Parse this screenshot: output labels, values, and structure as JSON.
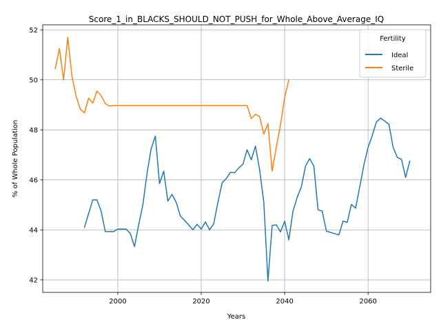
{
  "chart_data": {
    "type": "line",
    "title": "Score_1_in_BLACKS_SHOULD_NOT_PUSH_for_Whole_Above_Average_IQ",
    "xlabel": "Years",
    "ylabel": "% of Whole Population",
    "xlim": [
      1982,
      2075
    ],
    "ylim": [
      41.5,
      52.2
    ],
    "grid": true,
    "xticks": [
      2000,
      2020,
      2040,
      2060
    ],
    "yticks": [
      42,
      44,
      46,
      48,
      50,
      52
    ],
    "legend": {
      "title": "Fertility",
      "placement": "top-right"
    },
    "series": [
      {
        "name": "Ideal",
        "color": "#1f77b4",
        "x": [
          1992,
          1993,
          1994,
          1995,
          1996,
          1997,
          1998,
          1999,
          2000,
          2001,
          2002,
          2003,
          2004,
          2005,
          2006,
          2007,
          2008,
          2009,
          2010,
          2011,
          2012,
          2013,
          2014,
          2015,
          2016,
          2017,
          2018,
          2019,
          2020,
          2021,
          2022,
          2023,
          2024,
          2025,
          2026,
          2027,
          2028,
          2029,
          2030,
          2031,
          2032,
          2033,
          2034,
          2035,
          2036,
          2037,
          2038,
          2039,
          2040,
          2041,
          2042,
          2043,
          2044,
          2045,
          2046,
          2047,
          2048,
          2049,
          2050,
          2051,
          2052,
          2053,
          2054,
          2055,
          2056,
          2057,
          2058,
          2059,
          2060,
          2061,
          2062,
          2063,
          2064,
          2065,
          2066,
          2067,
          2068,
          2069,
          2070
        ],
        "values": [
          44.1,
          44.65,
          45.2,
          45.2,
          44.75,
          43.93,
          43.93,
          43.93,
          44.03,
          44.03,
          44.03,
          43.85,
          43.33,
          44.2,
          45.0,
          46.25,
          47.25,
          47.75,
          45.85,
          46.35,
          45.15,
          45.42,
          45.1,
          44.55,
          44.38,
          44.2,
          44.0,
          44.22,
          44.03,
          44.32,
          44.0,
          44.25,
          45.1,
          45.88,
          46.05,
          46.3,
          46.28,
          46.48,
          46.63,
          47.2,
          46.8,
          47.35,
          46.4,
          45.1,
          41.95,
          44.18,
          44.2,
          43.92,
          44.35,
          43.6,
          44.75,
          45.3,
          45.72,
          46.55,
          46.85,
          46.55,
          44.8,
          44.75,
          43.95,
          43.9,
          43.85,
          43.8,
          44.35,
          44.3,
          45.02,
          44.87,
          45.72,
          46.6,
          47.3,
          47.77,
          48.32,
          48.47,
          48.35,
          48.22,
          47.3,
          46.9,
          46.82,
          46.1,
          46.75
        ]
      },
      {
        "name": "Sterile",
        "color": "#ff7f0e",
        "x": [
          1985,
          1986,
          1987,
          1988,
          1989,
          1990,
          1991,
          1992,
          1993,
          1994,
          1995,
          1996,
          1997,
          1998,
          1999,
          2000,
          2031,
          2032,
          2033,
          2034,
          2035,
          2036,
          2037,
          2038,
          2039,
          2040,
          2041
        ],
        "values": [
          50.45,
          51.25,
          50.0,
          51.7,
          50.15,
          49.35,
          48.83,
          48.68,
          49.27,
          49.07,
          49.55,
          49.37,
          49.05,
          48.95,
          48.97,
          48.97,
          48.97,
          48.45,
          48.62,
          48.53,
          47.83,
          48.25,
          46.35,
          47.3,
          48.2,
          49.3,
          50.0
        ]
      }
    ]
  }
}
